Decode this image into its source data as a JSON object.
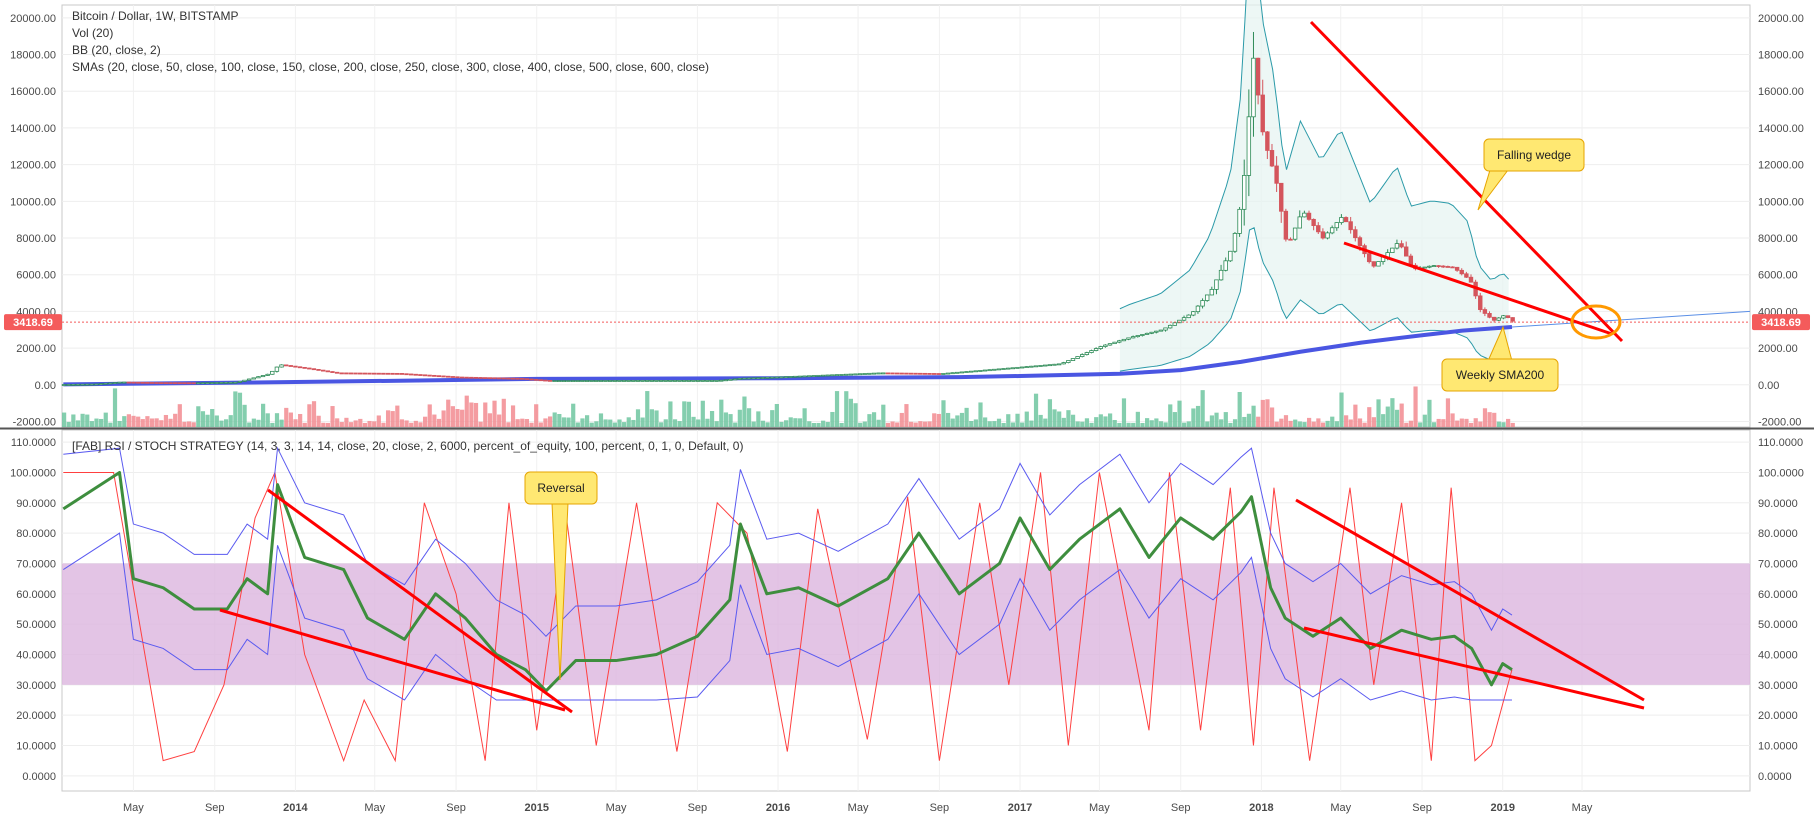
{
  "header": {
    "symbol_line": "Bitcoin / Dollar, 1W, BITSTAMP",
    "indicator_lines": [
      "Vol (20)",
      "BB (20, close, 2)",
      "SMAs (20, close, 50, close, 100, close, 150, close, 200, close, 250, close, 300, close, 400, close, 500, close, 600, close)"
    ],
    "oscillator_line": "[FAB] RSI / STOCH STRATEGY (14, 3, 3, 14, 14, close, 20, close, 2, 6000, percent_of_equity, 100, percent, 0, 1, 0, Default, 0)"
  },
  "colors": {
    "up": "#6fc6a0",
    "down": "#f28b91",
    "candle_up": "#2e8b57",
    "candle_down": "#d4555c",
    "sma200": "#4a56e2",
    "trendline": "#ff0000",
    "rsi": "#3e8e3e",
    "stoch_k": "#ff4040",
    "bands": "#5a5af0",
    "zone": "#dcb5df",
    "callout_fill": "#ffe872",
    "callout_border": "#e6a400",
    "highlight_circle": "#ff9900",
    "last_price_label": "#f45b5b"
  },
  "price_badge": "3418.69",
  "callouts": {
    "falling_wedge": "Falling wedge",
    "weekly_sma200": "Weekly SMA200",
    "reversal": "Reversal"
  },
  "chart_data": [
    {
      "type": "candlestick",
      "title": "Bitcoin / Dollar, 1W, BITSTAMP",
      "y_ticks": [
        "20000.00",
        "18000.00",
        "16000.00",
        "14000.00",
        "12000.00",
        "10000.00",
        "8000.00",
        "6000.00",
        "4000.00",
        "2000.00",
        "0.00",
        "-2000.00"
      ],
      "ylim": [
        -2300,
        20700
      ],
      "last_price": 3418.69,
      "x_ticks": [
        "May",
        "Sep",
        "2014",
        "May",
        "Sep",
        "2015",
        "May",
        "Sep",
        "2016",
        "May",
        "Sep",
        "2017",
        "May",
        "Sep",
        "2018",
        "May",
        "Sep",
        "2019",
        "May"
      ],
      "x_tick_dates": [
        "2013-05-01",
        "2013-09-01",
        "2014-01-01",
        "2014-05-01",
        "2014-09-01",
        "2015-01-01",
        "2015-05-01",
        "2015-09-01",
        "2016-01-01",
        "2016-05-01",
        "2016-09-01",
        "2017-01-01",
        "2017-05-01",
        "2017-09-01",
        "2018-01-01",
        "2018-05-01",
        "2018-09-01",
        "2019-01-01",
        "2019-05-01"
      ],
      "xlim": [
        "2013-01-13",
        "2020-01-10"
      ],
      "series": [
        {
          "kind": "close",
          "dates": [
            "2013-01-15",
            "2013-03-01",
            "2013-04-10",
            "2013-06-01",
            "2013-08-01",
            "2013-10-01",
            "2013-11-20",
            "2013-12-05",
            "2014-01-15",
            "2014-03-01",
            "2014-06-01",
            "2014-09-01",
            "2014-12-01",
            "2015-01-15",
            "2015-06-01",
            "2015-10-01",
            "2015-11-05",
            "2016-01-01",
            "2016-06-01",
            "2016-09-01",
            "2017-01-01",
            "2017-03-01",
            "2017-05-01",
            "2017-06-15",
            "2017-08-01",
            "2017-09-15",
            "2017-10-15",
            "2017-11-15",
            "2017-12-01",
            "2017-12-17",
            "2018-01-01",
            "2018-01-20",
            "2018-02-06",
            "2018-03-01",
            "2018-04-01",
            "2018-05-01",
            "2018-06-15",
            "2018-07-25",
            "2018-08-15",
            "2018-09-15",
            "2018-10-15",
            "2018-11-10",
            "2018-11-25",
            "2018-12-15",
            "2019-01-01",
            "2019-01-15"
          ],
          "values": [
            15,
            40,
            150,
            120,
            110,
            140,
            600,
            1100,
            900,
            650,
            620,
            420,
            350,
            230,
            240,
            240,
            360,
            430,
            650,
            610,
            970,
            1150,
            2100,
            2600,
            3000,
            3900,
            5200,
            7500,
            10500,
            17800,
            13500,
            11200,
            7500,
            9500,
            8000,
            9200,
            6400,
            7800,
            6300,
            6500,
            6400,
            5700,
            4100,
            3500,
            3800,
            3420
          ]
        },
        {
          "kind": "sma200",
          "name": "Weekly SMA200",
          "dates": [
            "2013-01-15",
            "2014-01-01",
            "2015-01-01",
            "2016-01-01",
            "2016-10-01",
            "2017-01-01",
            "2017-06-01",
            "2017-09-01",
            "2017-12-01",
            "2018-03-01",
            "2018-06-01",
            "2018-09-01",
            "2018-11-01",
            "2019-01-15"
          ],
          "values": [
            20,
            150,
            320,
            360,
            420,
            480,
            600,
            800,
            1250,
            1800,
            2300,
            2700,
            2950,
            3150
          ]
        }
      ]
    },
    {
      "type": "line",
      "title": "[FAB] RSI / STOCH STRATEGY",
      "y_ticks": [
        "110.0000",
        "100.0000",
        "90.0000",
        "80.0000",
        "70.0000",
        "60.0000",
        "50.0000",
        "40.0000",
        "30.0000",
        "20.0000",
        "10.0000",
        "0.0000"
      ],
      "ylim": [
        -5,
        114
      ],
      "zone": [
        30,
        70
      ],
      "series": [
        {
          "name": "RSI",
          "dates": [
            "2013-01-15",
            "2013-04-10",
            "2013-05-01",
            "2013-06-15",
            "2013-08-01",
            "2013-09-20",
            "2013-10-20",
            "2013-11-20",
            "2013-12-05",
            "2014-01-15",
            "2014-03-15",
            "2014-04-20",
            "2014-06-15",
            "2014-08-01",
            "2014-09-15",
            "2014-11-01",
            "2014-12-15",
            "2015-01-15",
            "2015-03-01",
            "2015-05-01",
            "2015-07-01",
            "2015-09-01",
            "2015-10-20",
            "2015-11-05",
            "2015-12-15",
            "2016-02-01",
            "2016-04-01",
            "2016-06-15",
            "2016-08-01",
            "2016-10-01",
            "2016-12-01",
            "2017-01-01",
            "2017-02-15",
            "2017-04-01",
            "2017-06-01",
            "2017-07-15",
            "2017-09-01",
            "2017-10-20",
            "2017-12-01",
            "2017-12-17",
            "2018-01-15",
            "2018-02-06",
            "2018-03-20",
            "2018-05-01",
            "2018-06-15",
            "2018-08-01",
            "2018-09-15",
            "2018-10-20",
            "2018-11-15",
            "2018-12-15",
            "2019-01-01",
            "2019-01-15"
          ],
          "values": [
            88,
            100,
            65,
            62,
            55,
            55,
            65,
            60,
            96,
            72,
            68,
            52,
            45,
            60,
            52,
            40,
            35,
            28,
            38,
            38,
            40,
            46,
            58,
            83,
            60,
            62,
            56,
            65,
            80,
            60,
            70,
            85,
            68,
            78,
            88,
            72,
            85,
            78,
            87,
            92,
            62,
            52,
            46,
            52,
            42,
            48,
            45,
            46,
            42,
            30,
            37,
            35
          ]
        },
        {
          "name": "Stoch",
          "dates": [
            "2013-01-15",
            "2013-04-01",
            "2013-06-15",
            "2013-08-01",
            "2013-09-15",
            "2013-11-01",
            "2013-12-01",
            "2014-01-15",
            "2014-03-15",
            "2014-04-15",
            "2014-06-01",
            "2014-07-15",
            "2014-09-01",
            "2014-10-15",
            "2014-11-20",
            "2015-01-01",
            "2015-02-15",
            "2015-04-01",
            "2015-06-01",
            "2015-08-01",
            "2015-10-01",
            "2015-11-15",
            "2016-01-15",
            "2016-03-01",
            "2016-05-15",
            "2016-07-15",
            "2016-09-01",
            "2016-11-01",
            "2016-12-15",
            "2017-02-01",
            "2017-03-15",
            "2017-05-01",
            "2017-07-15",
            "2017-08-15",
            "2017-10-01",
            "2017-11-15",
            "2017-12-20",
            "2018-01-20",
            "2018-03-15",
            "2018-05-15",
            "2018-06-20",
            "2018-08-01",
            "2018-09-15",
            "2018-10-15",
            "2018-11-20",
            "2018-12-15",
            "2019-01-15"
          ],
          "values": [
            100,
            100,
            5,
            8,
            30,
            85,
            100,
            40,
            5,
            25,
            5,
            90,
            60,
            5,
            90,
            15,
            85,
            10,
            90,
            8,
            90,
            80,
            8,
            88,
            12,
            92,
            5,
            90,
            30,
            100,
            10,
            100,
            15,
            100,
            15,
            95,
            10,
            95,
            5,
            95,
            30,
            90,
            5,
            95,
            5,
            10,
            35
          ]
        }
      ]
    }
  ]
}
